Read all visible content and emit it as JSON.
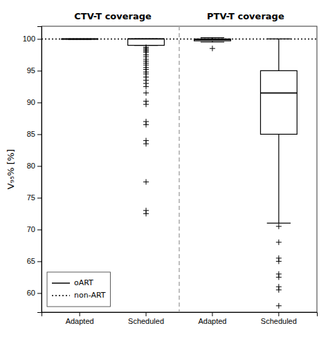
{
  "chart_data": {
    "type": "box",
    "ylabel": "V₉₅% [%]",
    "categories": [
      "Adapted",
      "Scheduled",
      "Adapted",
      "Scheduled"
    ],
    "groups": [
      "CTV-T coverage",
      "CTV-T coverage",
      "PTV-T coverage",
      "PTV-T coverage"
    ],
    "boxes": [
      {
        "q1": 99.95,
        "median": 100.0,
        "q3": 100.0,
        "whislo": 99.95,
        "whishi": 100.0,
        "fliers": []
      },
      {
        "q1": 99.0,
        "median": 100.0,
        "q3": 100.0,
        "whislo": 99.0,
        "whishi": 100.0,
        "fliers": [
          98.7,
          98.5,
          98.3,
          98.1,
          97.9,
          97.5,
          97.2,
          96.8,
          96.5,
          96.2,
          95.9,
          95.5,
          95.2,
          94.8,
          94.5,
          94.0,
          93.5,
          93.0,
          92.5,
          91.5,
          90.2,
          89.7,
          87.0,
          86.5,
          84.0,
          83.5,
          77.5,
          73.0,
          72.5
        ]
      },
      {
        "q1": 99.7,
        "median": 99.9,
        "q3": 100.0,
        "whislo": 99.5,
        "whishi": 100.2,
        "fliers": [
          98.5
        ]
      },
      {
        "q1": 85.0,
        "median": 91.5,
        "q3": 95.0,
        "whislo": 71.0,
        "whishi": 100.0,
        "fliers": [
          70.5,
          68.0,
          65.5,
          65.0,
          63.0,
          62.5,
          61.0,
          60.5,
          58.0
        ]
      }
    ],
    "ylim": [
      57,
      102
    ],
    "yticks": [
      60,
      65,
      70,
      75,
      80,
      85,
      90,
      95,
      100
    ],
    "hline": {
      "y": 100,
      "line_style": "dotted"
    },
    "marker": "plus",
    "color": "#000000",
    "legend": "lower left",
    "legend_entries": [
      {
        "name": "oART",
        "line_style": "solid"
      },
      {
        "name": "non-ART",
        "line_style": "dotted"
      }
    ]
  }
}
